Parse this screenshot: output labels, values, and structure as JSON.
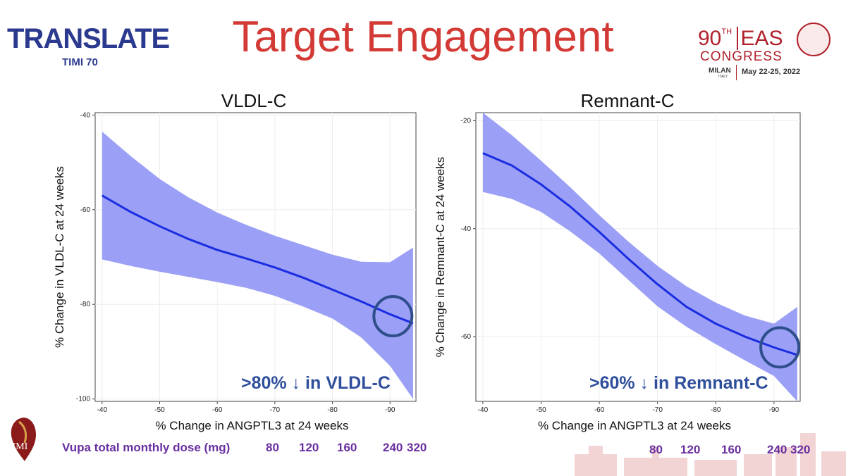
{
  "slide": {
    "title": "Target Engagement",
    "logo_left_main": "TRANSLATE",
    "logo_left_sub": "TIMI 70",
    "logo_right_number": "90",
    "logo_right_number_sup": "TH",
    "logo_right_name": "EAS",
    "logo_right_congress": "CONGRESS",
    "logo_right_city": "MILAN",
    "logo_right_country": "ITALY",
    "logo_right_dates": "May 22-25, 2022",
    "logo_bottom_left": "TIMI",
    "dose_label": "Vupa total monthly dose (mg)",
    "doses_left": [
      "80",
      "120",
      "160",
      "240",
      "320"
    ],
    "doses_right": [
      "80",
      "120",
      "160",
      "240",
      "320"
    ]
  },
  "colors": {
    "title": "#d33a35",
    "line": "#1a2de0",
    "band": "#9ba0f6",
    "circle": "#2f4f8c",
    "callout": "#2f4f9c",
    "dose": "#6a2fa0"
  },
  "chart_data": [
    {
      "type": "line",
      "title": "VLDL-C",
      "xlabel": "% Change in ANGPTL3 at 24 weeks",
      "ylabel": "% Change in VLDL-C at 24 weeks",
      "xlim": [
        -94.5,
        -38.8
      ],
      "ylim": [
        -100.5,
        -39.5
      ],
      "xticks": [
        -40,
        -50,
        -60,
        -70,
        -80,
        -90
      ],
      "yticks": [
        -40,
        -60,
        -80,
        -100
      ],
      "x": [
        -40,
        -45,
        -50,
        -55,
        -60,
        -65,
        -70,
        -75,
        -80,
        -85,
        -90,
        -94
      ],
      "series": [
        {
          "name": "fit",
          "values": [
            -57,
            -60.5,
            -63.5,
            -66.2,
            -68.5,
            -70.3,
            -72.2,
            -74.4,
            -76.9,
            -79.4,
            -82.1,
            -84
          ]
        },
        {
          "name": "upper",
          "values": [
            -43.5,
            -48.7,
            -53.5,
            -57.4,
            -60.6,
            -63.2,
            -65.5,
            -67.5,
            -69.5,
            -71,
            -71.1,
            -68
          ]
        },
        {
          "name": "lower",
          "values": [
            -70.5,
            -71.9,
            -73.1,
            -74.2,
            -75.3,
            -76.5,
            -78.2,
            -80.5,
            -83,
            -87,
            -93,
            -100
          ]
        }
      ],
      "annotation": ">80% ↓ in VLDL-C",
      "highlight": {
        "x": -90.5,
        "y": -82.5
      }
    },
    {
      "type": "line",
      "title": "Remnant-C",
      "xlabel": "% Change in ANGPTL3 at 24 weeks",
      "ylabel": "% Change in Remnant-C at 24 weeks",
      "xlim": [
        -94.5,
        -38.8
      ],
      "ylim": [
        -72,
        -18.5
      ],
      "xticks": [
        -40,
        -50,
        -60,
        -70,
        -80,
        -90
      ],
      "yticks": [
        -20,
        -40,
        -60
      ],
      "x": [
        -40,
        -45,
        -50,
        -55,
        -60,
        -65,
        -70,
        -75,
        -80,
        -85,
        -90,
        -94
      ],
      "series": [
        {
          "name": "fit",
          "values": [
            -26,
            -28.3,
            -31.8,
            -35.9,
            -40.6,
            -45.6,
            -50.3,
            -54.5,
            -57.6,
            -60,
            -62,
            -63.4
          ]
        },
        {
          "name": "upper",
          "values": [
            -18.5,
            -22.7,
            -27.4,
            -32.3,
            -37.5,
            -42.4,
            -46.9,
            -50.7,
            -53.7,
            -56.1,
            -57.6,
            -54.5
          ]
        },
        {
          "name": "lower",
          "values": [
            -33.2,
            -34.5,
            -36.9,
            -40.5,
            -44.6,
            -49.5,
            -54.4,
            -58.2,
            -61.4,
            -64.4,
            -67.3,
            -72
          ]
        }
      ],
      "annotation": ">60% ↓ in Remnant-C",
      "highlight": {
        "x": -91,
        "y": -62
      }
    }
  ]
}
